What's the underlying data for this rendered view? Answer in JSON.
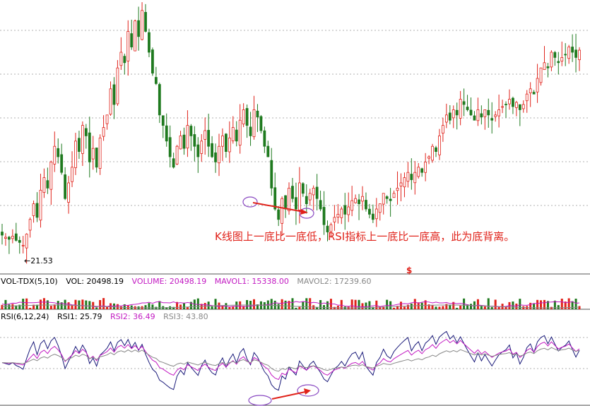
{
  "annotation": "K线图上一底比一底低，RSI指标上一底比一底高，此为底背离。",
  "price_panel": {
    "low_label": "←21.53",
    "marker": "$"
  },
  "volume_header": {
    "name": "VOL-TDX(5,10)",
    "vol": "VOL: 20498.19",
    "volume": "VOLUME: 20498.19",
    "mavol1": "MAVOL1: 15338.00",
    "mavol2": "MAVOL2: 17239.60"
  },
  "rsi_header": {
    "name": "RSI(6,12,24)",
    "rsi1": "RSI1: 25.79",
    "rsi2": "RSI2: 36.49",
    "rsi3": "RSI3: 43.80"
  },
  "colors": {
    "up": "#e0221a",
    "down": "#1f7a1f",
    "rsi1": "#1a1a7a",
    "rsi2": "#c21ac2",
    "rsi3": "#888888",
    "arrow": "#e0221a",
    "ellipse": "#8a4ac2",
    "grid": "#999999"
  },
  "chart_data": [
    {
      "type": "candlestick",
      "title": "",
      "price_series": [
        22.5,
        22.3,
        22.1,
        22.4,
        22.0,
        21.8,
        21.53,
        22.6,
        24.0,
        25.5,
        24.2,
        26.8,
        28.0,
        27.0,
        29.5,
        31.0,
        30.0,
        28.5,
        26.0,
        27.5,
        29.0,
        31.5,
        30.5,
        33.0,
        32.0,
        29.5,
        30.8,
        29.0,
        31.8,
        32.8,
        34.0,
        36.5,
        35.0,
        38.5,
        40.0,
        39.0,
        42.0,
        40.5,
        43.0,
        41.5,
        44.0,
        42.0,
        40.0,
        38.0,
        37.0,
        34.0,
        33.0,
        31.5,
        30.0,
        29.0,
        31.0,
        32.0,
        30.8,
        33.0,
        32.0,
        31.0,
        30.0,
        31.5,
        32.5,
        31.0,
        30.0,
        29.5,
        31.0,
        32.0,
        30.5,
        31.8,
        32.8,
        31.5,
        33.5,
        34.5,
        33.0,
        32.0,
        34.5,
        33.8,
        32.5,
        31.0,
        30.0,
        27.0,
        25.0,
        24.0,
        26.0,
        25.0,
        27.0,
        26.0,
        25.0,
        27.5,
        26.5,
        25.5,
        26.5,
        27.0,
        26.0,
        25.0,
        23.5,
        22.8,
        23.5,
        24.2,
        24.5,
        25.0,
        24.5,
        25.2,
        25.8,
        26.0,
        25.5,
        26.2,
        25.0,
        24.5,
        24.0,
        25.0,
        25.5,
        26.5,
        26.0,
        25.8,
        26.5,
        27.0,
        27.5,
        28.0,
        28.5,
        27.8,
        28.5,
        29.0,
        28.5,
        29.5,
        30.0,
        31.0,
        30.5,
        32.0,
        33.0,
        34.0,
        33.5,
        34.5,
        34.0,
        35.5,
        35.0,
        34.5,
        34.0,
        33.5,
        34.5,
        33.8,
        34.5,
        34.0,
        33.5,
        34.0,
        34.5,
        34.8,
        35.0,
        35.5,
        34.8,
        35.2,
        34.5,
        35.0,
        36.0,
        36.5,
        36.0,
        37.5,
        38.5,
        39.0,
        38.5,
        40.0,
        39.5,
        39.0,
        39.5,
        39.8,
        40.5,
        40.0,
        39.5,
        40.2
      ],
      "low_value": 21.53
    },
    {
      "type": "bar",
      "title": "VOL-TDX(5,10)",
      "vol": 20498.19,
      "mavol1": 15338.0,
      "mavol2": 17239.6
    },
    {
      "type": "line",
      "title": "RSI(6,12,24)",
      "series": [
        {
          "name": "RSI1",
          "last": 25.79
        },
        {
          "name": "RSI2",
          "last": 36.49
        },
        {
          "name": "RSI3",
          "last": 43.8
        }
      ]
    }
  ]
}
